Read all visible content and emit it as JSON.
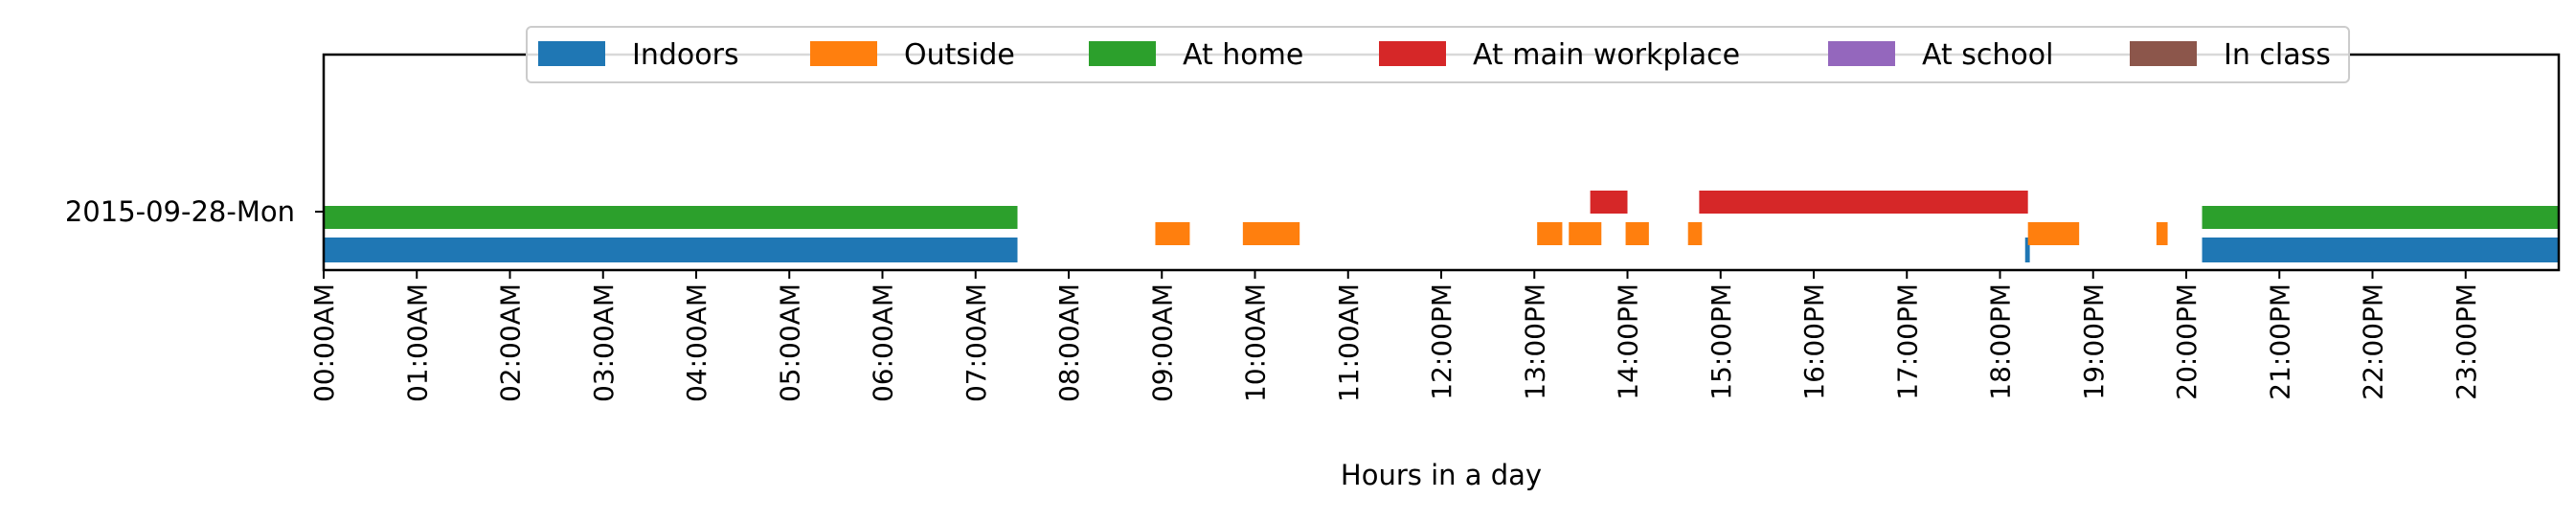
{
  "chart_data": {
    "type": "bar",
    "orientation": "horizontal-timeline",
    "title": "",
    "xlabel": "Hours in a day",
    "ylabel": "",
    "xlim": [
      0,
      24
    ],
    "categories": [
      "2015-09-28-Mon"
    ],
    "x_ticks": [
      {
        "hour": 0,
        "label": "00:00AM"
      },
      {
        "hour": 1,
        "label": "01:00AM"
      },
      {
        "hour": 2,
        "label": "02:00AM"
      },
      {
        "hour": 3,
        "label": "03:00AM"
      },
      {
        "hour": 4,
        "label": "04:00AM"
      },
      {
        "hour": 5,
        "label": "05:00AM"
      },
      {
        "hour": 6,
        "label": "06:00AM"
      },
      {
        "hour": 7,
        "label": "07:00AM"
      },
      {
        "hour": 8,
        "label": "08:00AM"
      },
      {
        "hour": 9,
        "label": "09:00AM"
      },
      {
        "hour": 10,
        "label": "10:00AM"
      },
      {
        "hour": 11,
        "label": "11:00AM"
      },
      {
        "hour": 12,
        "label": "12:00PM"
      },
      {
        "hour": 13,
        "label": "13:00PM"
      },
      {
        "hour": 14,
        "label": "14:00PM"
      },
      {
        "hour": 15,
        "label": "15:00PM"
      },
      {
        "hour": 16,
        "label": "16:00PM"
      },
      {
        "hour": 17,
        "label": "17:00PM"
      },
      {
        "hour": 18,
        "label": "18:00PM"
      },
      {
        "hour": 19,
        "label": "19:00PM"
      },
      {
        "hour": 20,
        "label": "20:00PM"
      },
      {
        "hour": 21,
        "label": "21:00PM"
      },
      {
        "hour": 22,
        "label": "22:00PM"
      },
      {
        "hour": 23,
        "label": "23:00PM"
      }
    ],
    "legend_position": "top-center",
    "grid": false,
    "series": [
      {
        "name": "Indoors",
        "color": "#1f77b4",
        "intervals": [
          [
            0.0,
            7.45
          ],
          [
            18.27,
            18.32
          ],
          [
            20.17,
            24.0
          ]
        ]
      },
      {
        "name": "Outside",
        "color": "#ff7f0e",
        "intervals": [
          [
            8.93,
            9.3
          ],
          [
            9.87,
            10.48
          ],
          [
            13.03,
            13.3
          ],
          [
            13.37,
            13.72
          ],
          [
            13.98,
            14.23
          ],
          [
            14.65,
            14.8
          ],
          [
            18.3,
            18.85
          ],
          [
            19.68,
            19.8
          ]
        ]
      },
      {
        "name": "At home",
        "color": "#2ca02c",
        "intervals": [
          [
            0.0,
            7.45
          ],
          [
            20.17,
            24.0
          ]
        ]
      },
      {
        "name": "At main workplace",
        "color": "#d62728",
        "intervals": [
          [
            13.6,
            14.0
          ],
          [
            14.77,
            18.3
          ]
        ]
      },
      {
        "name": "At school",
        "color": "#9467bd",
        "intervals": []
      },
      {
        "name": "In class",
        "color": "#8c564b",
        "intervals": []
      }
    ]
  }
}
